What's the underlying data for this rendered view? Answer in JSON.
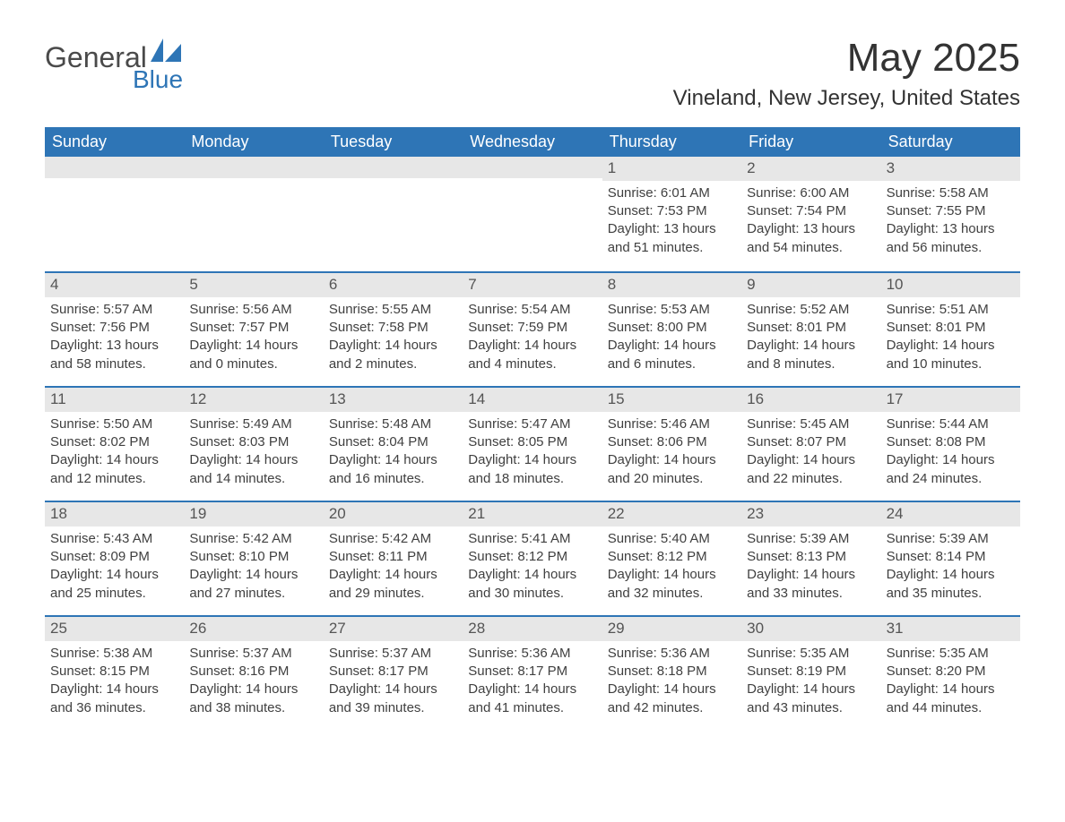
{
  "logo": {
    "word1": "General",
    "word2": "Blue",
    "icon_color": "#2e75b6",
    "text_gray": "#4a4a4a"
  },
  "title": "May 2025",
  "location": "Vineland, New Jersey, United States",
  "colors": {
    "header_bg": "#2e75b6",
    "header_fg": "#ffffff",
    "daynum_bg": "#e7e7e7",
    "border": "#2e75b6",
    "body_text": "#404040"
  },
  "weekdays": [
    "Sunday",
    "Monday",
    "Tuesday",
    "Wednesday",
    "Thursday",
    "Friday",
    "Saturday"
  ],
  "weeks": [
    [
      {
        "n": "",
        "sr": "",
        "ss": "",
        "dl": ""
      },
      {
        "n": "",
        "sr": "",
        "ss": "",
        "dl": ""
      },
      {
        "n": "",
        "sr": "",
        "ss": "",
        "dl": ""
      },
      {
        "n": "",
        "sr": "",
        "ss": "",
        "dl": ""
      },
      {
        "n": "1",
        "sr": "Sunrise: 6:01 AM",
        "ss": "Sunset: 7:53 PM",
        "dl": "Daylight: 13 hours and 51 minutes."
      },
      {
        "n": "2",
        "sr": "Sunrise: 6:00 AM",
        "ss": "Sunset: 7:54 PM",
        "dl": "Daylight: 13 hours and 54 minutes."
      },
      {
        "n": "3",
        "sr": "Sunrise: 5:58 AM",
        "ss": "Sunset: 7:55 PM",
        "dl": "Daylight: 13 hours and 56 minutes."
      }
    ],
    [
      {
        "n": "4",
        "sr": "Sunrise: 5:57 AM",
        "ss": "Sunset: 7:56 PM",
        "dl": "Daylight: 13 hours and 58 minutes."
      },
      {
        "n": "5",
        "sr": "Sunrise: 5:56 AM",
        "ss": "Sunset: 7:57 PM",
        "dl": "Daylight: 14 hours and 0 minutes."
      },
      {
        "n": "6",
        "sr": "Sunrise: 5:55 AM",
        "ss": "Sunset: 7:58 PM",
        "dl": "Daylight: 14 hours and 2 minutes."
      },
      {
        "n": "7",
        "sr": "Sunrise: 5:54 AM",
        "ss": "Sunset: 7:59 PM",
        "dl": "Daylight: 14 hours and 4 minutes."
      },
      {
        "n": "8",
        "sr": "Sunrise: 5:53 AM",
        "ss": "Sunset: 8:00 PM",
        "dl": "Daylight: 14 hours and 6 minutes."
      },
      {
        "n": "9",
        "sr": "Sunrise: 5:52 AM",
        "ss": "Sunset: 8:01 PM",
        "dl": "Daylight: 14 hours and 8 minutes."
      },
      {
        "n": "10",
        "sr": "Sunrise: 5:51 AM",
        "ss": "Sunset: 8:01 PM",
        "dl": "Daylight: 14 hours and 10 minutes."
      }
    ],
    [
      {
        "n": "11",
        "sr": "Sunrise: 5:50 AM",
        "ss": "Sunset: 8:02 PM",
        "dl": "Daylight: 14 hours and 12 minutes."
      },
      {
        "n": "12",
        "sr": "Sunrise: 5:49 AM",
        "ss": "Sunset: 8:03 PM",
        "dl": "Daylight: 14 hours and 14 minutes."
      },
      {
        "n": "13",
        "sr": "Sunrise: 5:48 AM",
        "ss": "Sunset: 8:04 PM",
        "dl": "Daylight: 14 hours and 16 minutes."
      },
      {
        "n": "14",
        "sr": "Sunrise: 5:47 AM",
        "ss": "Sunset: 8:05 PM",
        "dl": "Daylight: 14 hours and 18 minutes."
      },
      {
        "n": "15",
        "sr": "Sunrise: 5:46 AM",
        "ss": "Sunset: 8:06 PM",
        "dl": "Daylight: 14 hours and 20 minutes."
      },
      {
        "n": "16",
        "sr": "Sunrise: 5:45 AM",
        "ss": "Sunset: 8:07 PM",
        "dl": "Daylight: 14 hours and 22 minutes."
      },
      {
        "n": "17",
        "sr": "Sunrise: 5:44 AM",
        "ss": "Sunset: 8:08 PM",
        "dl": "Daylight: 14 hours and 24 minutes."
      }
    ],
    [
      {
        "n": "18",
        "sr": "Sunrise: 5:43 AM",
        "ss": "Sunset: 8:09 PM",
        "dl": "Daylight: 14 hours and 25 minutes."
      },
      {
        "n": "19",
        "sr": "Sunrise: 5:42 AM",
        "ss": "Sunset: 8:10 PM",
        "dl": "Daylight: 14 hours and 27 minutes."
      },
      {
        "n": "20",
        "sr": "Sunrise: 5:42 AM",
        "ss": "Sunset: 8:11 PM",
        "dl": "Daylight: 14 hours and 29 minutes."
      },
      {
        "n": "21",
        "sr": "Sunrise: 5:41 AM",
        "ss": "Sunset: 8:12 PM",
        "dl": "Daylight: 14 hours and 30 minutes."
      },
      {
        "n": "22",
        "sr": "Sunrise: 5:40 AM",
        "ss": "Sunset: 8:12 PM",
        "dl": "Daylight: 14 hours and 32 minutes."
      },
      {
        "n": "23",
        "sr": "Sunrise: 5:39 AM",
        "ss": "Sunset: 8:13 PM",
        "dl": "Daylight: 14 hours and 33 minutes."
      },
      {
        "n": "24",
        "sr": "Sunrise: 5:39 AM",
        "ss": "Sunset: 8:14 PM",
        "dl": "Daylight: 14 hours and 35 minutes."
      }
    ],
    [
      {
        "n": "25",
        "sr": "Sunrise: 5:38 AM",
        "ss": "Sunset: 8:15 PM",
        "dl": "Daylight: 14 hours and 36 minutes."
      },
      {
        "n": "26",
        "sr": "Sunrise: 5:37 AM",
        "ss": "Sunset: 8:16 PM",
        "dl": "Daylight: 14 hours and 38 minutes."
      },
      {
        "n": "27",
        "sr": "Sunrise: 5:37 AM",
        "ss": "Sunset: 8:17 PM",
        "dl": "Daylight: 14 hours and 39 minutes."
      },
      {
        "n": "28",
        "sr": "Sunrise: 5:36 AM",
        "ss": "Sunset: 8:17 PM",
        "dl": "Daylight: 14 hours and 41 minutes."
      },
      {
        "n": "29",
        "sr": "Sunrise: 5:36 AM",
        "ss": "Sunset: 8:18 PM",
        "dl": "Daylight: 14 hours and 42 minutes."
      },
      {
        "n": "30",
        "sr": "Sunrise: 5:35 AM",
        "ss": "Sunset: 8:19 PM",
        "dl": "Daylight: 14 hours and 43 minutes."
      },
      {
        "n": "31",
        "sr": "Sunrise: 5:35 AM",
        "ss": "Sunset: 8:20 PM",
        "dl": "Daylight: 14 hours and 44 minutes."
      }
    ]
  ]
}
